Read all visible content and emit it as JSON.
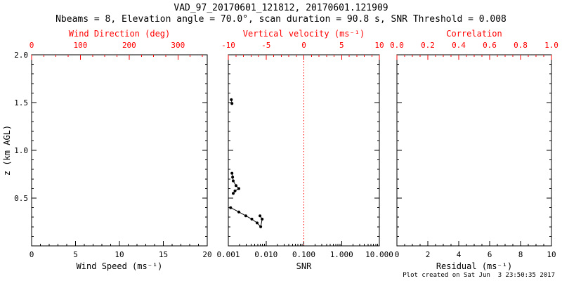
{
  "header": {
    "title": "VAD_97_20170601_121812, 20170601.121909",
    "subtitle": "Nbeams = 8, Elevation angle = 70.0°, scan duration = 90.8 s, SNR Threshold = 0.008"
  },
  "footer": {
    "created_text": "Plot created on Sat Jun  3 23:50:35 2017"
  },
  "colors": {
    "primary": "#000000",
    "secondary": "#ff0000",
    "background": "#ffffff"
  },
  "chart_data": [
    {
      "type": "scatter",
      "id": "wind-speed",
      "y_axis": {
        "label": "z (km AGL)",
        "lim": [
          0,
          2
        ],
        "tick_values": [
          0,
          0.5,
          1.0,
          1.5,
          2.0
        ],
        "tick_labels": [
          "",
          "0.5",
          "1.0",
          "1.5",
          "2.0"
        ],
        "minor_step": 0.1,
        "show_labels": true
      },
      "bottom_axis": {
        "label": "Wind Speed (ms⁻¹)",
        "scale": "linear",
        "lim": [
          0,
          20
        ],
        "tick_values": [
          0,
          5,
          10,
          15,
          20
        ],
        "tick_labels": [
          "0",
          "5",
          "10",
          "15",
          "20"
        ],
        "minor_step": 1
      },
      "top_axis": {
        "label": "Wind Direction (deg)",
        "scale": "linear",
        "lim": [
          0,
          360
        ],
        "tick_values": [
          0,
          100,
          200,
          300
        ],
        "tick_labels": [
          "0",
          "100",
          "200",
          "300"
        ],
        "minor_step": 25
      },
      "series": []
    },
    {
      "type": "scatter",
      "id": "snr",
      "y_axis": {
        "label": "",
        "lim": [
          0,
          2
        ],
        "tick_values": [
          0,
          0.5,
          1.0,
          1.5,
          2.0
        ],
        "tick_labels": [
          "",
          "",
          "",
          "",
          ""
        ],
        "minor_step": 0.1,
        "show_labels": false
      },
      "bottom_axis": {
        "label": "SNR",
        "scale": "log",
        "lim": [
          0.001,
          10
        ],
        "tick_values": [
          0.001,
          0.01,
          0.1,
          1,
          10
        ],
        "tick_labels": [
          "0.001",
          "0.010",
          "0.100",
          "1.000",
          "10.000"
        ]
      },
      "top_axis": {
        "label": "Vertical velocity (ms⁻¹)",
        "scale": "linear",
        "lim": [
          -10,
          10
        ],
        "tick_values": [
          -10,
          -5,
          0,
          5,
          10
        ],
        "tick_labels": [
          "-10",
          "-5",
          "0",
          "5",
          "10"
        ],
        "minor_step": 1
      },
      "ref_line": {
        "x": 0.1,
        "style": "dotted",
        "color": "#ff0000"
      },
      "series": [
        {
          "name": "snr-profile",
          "marker": "circle",
          "color": "#000000",
          "segments": [
            [
              [
                0.0012,
                1.53
              ],
              [
                0.00125,
                1.49
              ]
            ],
            [
              [
                0.00125,
                0.76
              ],
              [
                0.0013,
                0.72
              ],
              [
                0.00135,
                0.68
              ],
              [
                0.0016,
                0.63
              ],
              [
                0.0019,
                0.6
              ],
              [
                0.0015,
                0.575
              ],
              [
                0.00135,
                0.55
              ]
            ],
            [
              [
                0.00115,
                0.4
              ],
              [
                0.0019,
                0.355
              ],
              [
                0.0029,
                0.315
              ],
              [
                0.0042,
                0.28
              ],
              [
                0.0058,
                0.24
              ],
              [
                0.0072,
                0.2
              ],
              [
                0.0079,
                0.28
              ],
              [
                0.0069,
                0.315
              ]
            ]
          ]
        }
      ]
    },
    {
      "type": "scatter",
      "id": "residual",
      "y_axis": {
        "label": "",
        "lim": [
          0,
          2
        ],
        "tick_values": [
          0,
          0.5,
          1.0,
          1.5,
          2.0
        ],
        "tick_labels": [
          "",
          "",
          "",
          "",
          ""
        ],
        "minor_step": 0.1,
        "show_labels": false
      },
      "bottom_axis": {
        "label": "Residual (ms⁻¹)",
        "scale": "linear",
        "lim": [
          0,
          10
        ],
        "tick_values": [
          0,
          2,
          4,
          6,
          8,
          10
        ],
        "tick_labels": [
          "0",
          "2",
          "4",
          "6",
          "8",
          "10"
        ],
        "minor_step": 0.5
      },
      "top_axis": {
        "label": "Correlation",
        "scale": "linear",
        "lim": [
          0,
          1
        ],
        "tick_values": [
          0,
          0.2,
          0.4,
          0.6,
          0.8,
          1.0
        ],
        "tick_labels": [
          "0.0",
          "0.2",
          "0.4",
          "0.6",
          "0.8",
          "1.0"
        ],
        "minor_step": 0.05
      },
      "series": []
    }
  ]
}
